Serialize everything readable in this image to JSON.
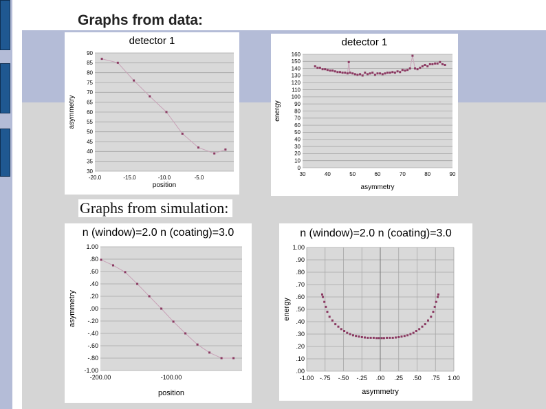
{
  "slide": {
    "heading": "Graphs from data:",
    "subheading": "Graphs from simulation:"
  },
  "colors": {
    "slide_background": "#b4bcd7",
    "content_panel": "#d5d5d5",
    "accent_bars": "#1f5891",
    "plot_area": "#d9d9d9",
    "gridline": "#a6a6a6",
    "series": "#8b3a62",
    "series_line": "#c9a3b8"
  },
  "chart_data": [
    {
      "type": "scatter",
      "title": "detector 1",
      "xlabel": "position",
      "ylabel": "asymmetry",
      "xlim": [
        -20,
        0
      ],
      "ylim": [
        30,
        90
      ],
      "xticks": [
        "-20.0",
        "-15.0",
        "-10.0",
        "-5.0"
      ],
      "yticks": [
        "30",
        "35",
        "40",
        "45",
        "50",
        "55",
        "60",
        "65",
        "70",
        "75",
        "80",
        "85",
        "90"
      ],
      "grid": "horizontal",
      "connected": true,
      "series": [
        {
          "x": [
            -19,
            -16.7,
            -14.4,
            -12.1,
            -9.7,
            -7.4,
            -5.1,
            -2.8,
            -1.2
          ],
          "y": [
            87,
            85,
            76,
            68,
            60,
            49,
            42,
            39,
            41
          ]
        }
      ]
    },
    {
      "type": "scatter",
      "title": "detector 1",
      "xlabel": "asymmetry",
      "ylabel": "energy",
      "xlim": [
        30,
        90
      ],
      "ylim": [
        0,
        160
      ],
      "xticks": [
        "30",
        "40",
        "50",
        "60",
        "70",
        "80",
        "90"
      ],
      "yticks": [
        "0",
        "10",
        "20",
        "30",
        "40",
        "50",
        "60",
        "70",
        "80",
        "90",
        "100",
        "110",
        "120",
        "130",
        "140",
        "150",
        "160"
      ],
      "grid": "horizontal",
      "connected": true,
      "series": [
        {
          "x": [
            35,
            36,
            37,
            38,
            39,
            40,
            41,
            42,
            43,
            44,
            45,
            46,
            47,
            48,
            48.5,
            49,
            50,
            51,
            52,
            53,
            54,
            55,
            56,
            57,
            58,
            59,
            60,
            61,
            62,
            63,
            64,
            65,
            66,
            67,
            68,
            69,
            70,
            71,
            72,
            73,
            74,
            75,
            76,
            77,
            78,
            79,
            80,
            81,
            82,
            83,
            84,
            85,
            86,
            87
          ],
          "y": [
            143,
            141,
            141,
            139,
            139,
            138,
            137,
            137,
            136,
            135,
            135,
            134,
            134,
            133,
            149,
            134,
            133,
            132,
            131,
            132,
            130,
            134,
            132,
            133,
            134,
            131,
            133,
            133,
            132,
            133,
            134,
            134,
            135,
            134,
            136,
            135,
            138,
            137,
            138,
            140,
            158,
            140,
            139,
            141,
            143,
            145,
            143,
            146,
            146,
            147,
            147,
            149,
            146,
            145
          ]
        }
      ]
    },
    {
      "type": "scatter",
      "title": "n (window)=2.0  n (coating)=3.0",
      "xlabel": "position",
      "ylabel": "asymmetry",
      "xlim": [
        -200,
        0
      ],
      "ylim": [
        -1,
        1
      ],
      "xticks": [
        "-200.00",
        "-100.00"
      ],
      "yticks": [
        "-1.00",
        "-.80",
        "-.60",
        "-.40",
        "-.20",
        ".00",
        ".20",
        ".40",
        ".60",
        ".80",
        "1.00"
      ],
      "grid": "horizontal",
      "connected": true,
      "series": [
        {
          "x": [
            -199,
            -182,
            -165,
            -148,
            -131,
            -114,
            -97,
            -80,
            -63,
            -46,
            -29,
            -12
          ],
          "y": [
            0.79,
            0.7,
            0.59,
            0.4,
            0.2,
            0.0,
            -0.21,
            -0.4,
            -0.58,
            -0.71,
            -0.8,
            -0.8
          ]
        }
      ]
    },
    {
      "type": "scatter",
      "title": "n (window)=2.0  n (coating)=3.0",
      "xlabel": "asymmetry",
      "ylabel": "energy",
      "xlim": [
        -1,
        1
      ],
      "ylim": [
        0,
        1
      ],
      "xticks": [
        "-1.00",
        "-.75",
        "-.50",
        "-.25",
        ".00",
        ".25",
        ".50",
        ".75",
        "1.00"
      ],
      "yticks": [
        ".00",
        ".10",
        ".20",
        ".30",
        ".40",
        ".50",
        ".60",
        ".70",
        ".80",
        ".90",
        "1.00"
      ],
      "grid": "both",
      "connected": false,
      "series": [
        {
          "x": [
            -0.79,
            -0.78,
            -0.76,
            -0.74,
            -0.72,
            -0.69,
            -0.65,
            -0.61,
            -0.57,
            -0.53,
            -0.49,
            -0.45,
            -0.41,
            -0.37,
            -0.33,
            -0.29,
            -0.25,
            -0.21,
            -0.17,
            -0.13,
            -0.09,
            -0.05,
            -0.02,
            0.02,
            0.05,
            0.09,
            0.13,
            0.17,
            0.21,
            0.25,
            0.29,
            0.33,
            0.37,
            0.41,
            0.45,
            0.49,
            0.53,
            0.57,
            0.61,
            0.65,
            0.69,
            0.72,
            0.74,
            0.76,
            0.78,
            0.79
          ],
          "y": [
            0.62,
            0.6,
            0.56,
            0.52,
            0.48,
            0.44,
            0.41,
            0.38,
            0.36,
            0.34,
            0.325,
            0.31,
            0.3,
            0.29,
            0.285,
            0.28,
            0.275,
            0.272,
            0.27,
            0.27,
            0.27,
            0.268,
            0.268,
            0.268,
            0.268,
            0.27,
            0.27,
            0.27,
            0.272,
            0.275,
            0.28,
            0.285,
            0.29,
            0.3,
            0.31,
            0.325,
            0.34,
            0.36,
            0.38,
            0.41,
            0.44,
            0.48,
            0.52,
            0.56,
            0.6,
            0.62
          ]
        }
      ]
    }
  ]
}
